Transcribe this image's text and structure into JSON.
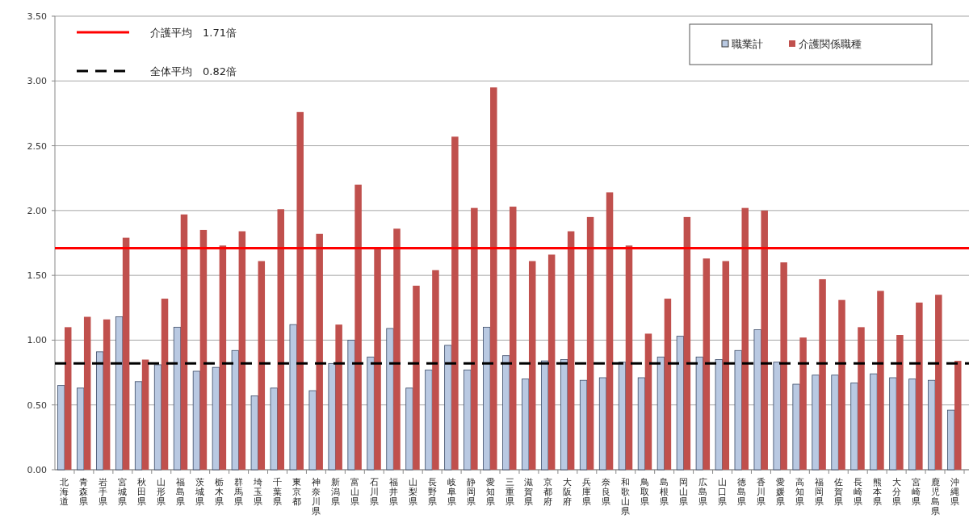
{
  "chart_data": {
    "type": "bar",
    "categories": [
      "北海道",
      "青森県",
      "岩手県",
      "宮城県",
      "秋田県",
      "山形県",
      "福島県",
      "茨城県",
      "栃木県",
      "群馬県",
      "埼玉県",
      "千葉県",
      "東京都",
      "神奈川県",
      "新潟県",
      "富山県",
      "石川県",
      "福井県",
      "山梨県",
      "長野県",
      "岐阜県",
      "静岡県",
      "愛知県",
      "三重県",
      "滋賀県",
      "京都府",
      "大阪府",
      "兵庫県",
      "奈良県",
      "和歌山県",
      "鳥取県",
      "島根県",
      "岡山県",
      "広島県",
      "山口県",
      "徳島県",
      "香川県",
      "愛媛県",
      "高知県",
      "福岡県",
      "佐賀県",
      "長崎県",
      "熊本県",
      "大分県",
      "宮崎県",
      "鹿児島県",
      "沖縄県"
    ],
    "series": [
      {
        "name": "職業計",
        "color": "#b9c9e2",
        "values": [
          0.65,
          0.63,
          0.91,
          1.18,
          0.68,
          0.81,
          1.1,
          0.76,
          0.79,
          0.92,
          0.57,
          0.63,
          1.12,
          0.61,
          0.82,
          1.0,
          0.87,
          1.09,
          0.63,
          0.77,
          0.96,
          0.77,
          1.1,
          0.88,
          0.7,
          0.84,
          0.85,
          0.69,
          0.71,
          0.83,
          0.71,
          0.87,
          1.03,
          0.87,
          0.85,
          0.92,
          1.08,
          0.83,
          0.66,
          0.73,
          0.73,
          0.67,
          0.74,
          0.71,
          0.7,
          0.69,
          0.46
        ]
      },
      {
        "name": "介護関係職種",
        "color": "#c0504d",
        "values": [
          1.1,
          1.18,
          1.16,
          1.79,
          0.85,
          1.32,
          1.97,
          1.85,
          1.73,
          1.84,
          1.61,
          2.01,
          2.76,
          1.82,
          1.12,
          2.2,
          1.71,
          1.86,
          1.42,
          1.54,
          2.57,
          2.02,
          2.95,
          2.03,
          1.61,
          1.66,
          1.84,
          1.95,
          2.14,
          1.73,
          1.05,
          1.32,
          1.95,
          1.63,
          1.61,
          2.02,
          2.0,
          1.6,
          1.02,
          1.47,
          1.31,
          1.1,
          1.38,
          1.04,
          1.29,
          1.35,
          0.84
        ]
      }
    ],
    "ylim": [
      0,
      3.5
    ],
    "yticks": [
      {
        "value": 0,
        "label": "0.00"
      },
      {
        "value": 0.5,
        "label": "0.50"
      },
      {
        "value": 1,
        "label": "1.00"
      },
      {
        "value": 1.5,
        "label": "1.50"
      },
      {
        "value": 2,
        "label": "2.00"
      },
      {
        "value": 2.5,
        "label": "2.50"
      },
      {
        "value": 3,
        "label": "3.00"
      },
      {
        "value": 3.5,
        "label": "3.50"
      }
    ],
    "grid": "y",
    "legend": "top right",
    "ref_lines": [
      {
        "axis": "y",
        "value": 1.71,
        "label": "介護平均　1.71倍",
        "color": "#ff0000",
        "line_style": "solid"
      },
      {
        "axis": "y",
        "value": 0.82,
        "label": "全体平均　0.82倍",
        "color": "#000000",
        "line_style": "dashed"
      }
    ]
  }
}
